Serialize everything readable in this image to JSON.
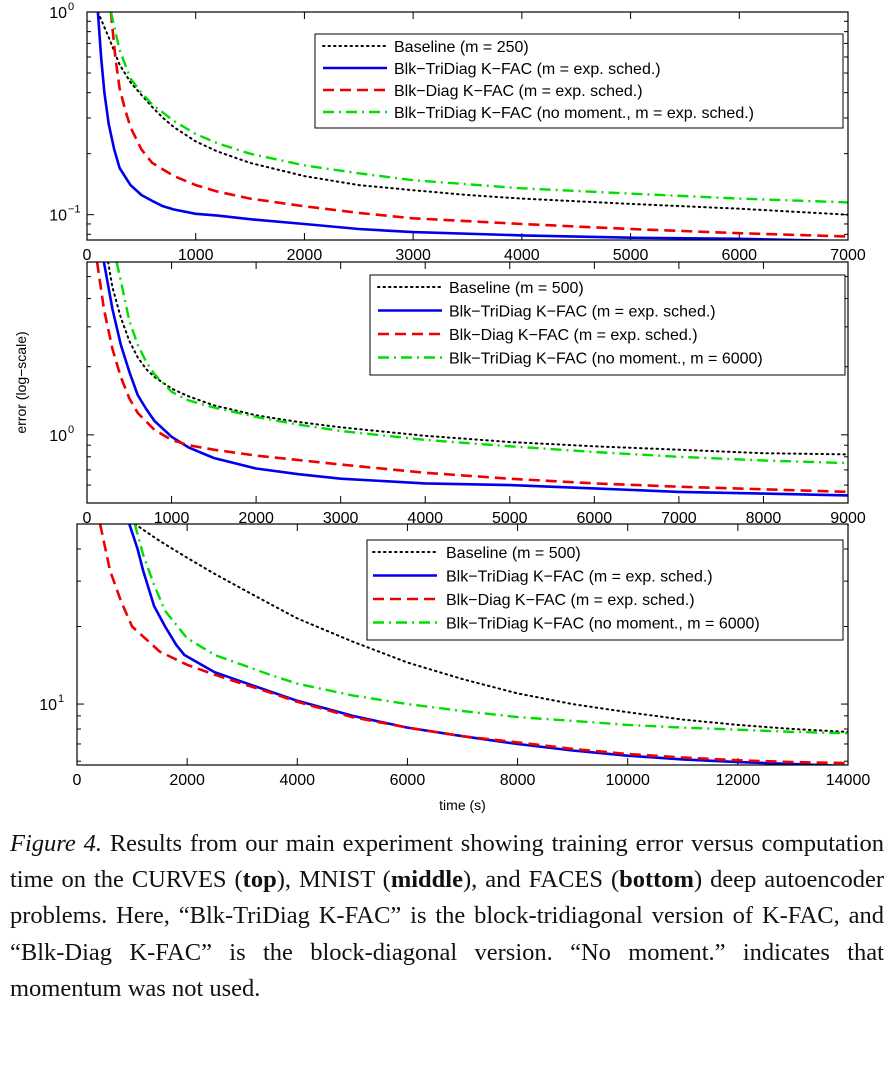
{
  "chart_data": [
    {
      "type": "line",
      "panel": "top",
      "yscale": "log",
      "xlim": [
        0,
        7000
      ],
      "ylim": [
        0.075,
        1.0
      ],
      "xticks": [
        "0",
        "1000",
        "2000",
        "3000",
        "4000",
        "5000",
        "6000",
        "7000"
      ],
      "yticks": [
        {
          "base": "10",
          "exp": "0"
        },
        {
          "base": "10",
          "exp": "−1"
        }
      ],
      "legend_position": "top-right",
      "series": [
        {
          "name": "Baseline (m = 250)",
          "color": "#000000",
          "style": "dotted",
          "x": [
            100,
            200,
            300,
            400,
            500,
            600,
            700,
            800,
            1000,
            1200,
            1500,
            2000,
            2500,
            3000,
            3500,
            4000,
            5000,
            6000,
            7000
          ],
          "y": [
            1.0,
            0.75,
            0.55,
            0.45,
            0.39,
            0.34,
            0.3,
            0.27,
            0.23,
            0.205,
            0.18,
            0.155,
            0.14,
            0.132,
            0.125,
            0.12,
            0.113,
            0.107,
            0.1
          ]
        },
        {
          "name": "Blk−TriDiag K−FAC (m = exp. sched.)",
          "color": "#0000ee",
          "style": "solid",
          "x": [
            100,
            130,
            160,
            200,
            250,
            300,
            400,
            500,
            600,
            700,
            800,
            1000,
            1200,
            1500,
            2000,
            2500,
            3000,
            4000,
            5000,
            6000,
            7000
          ],
          "y": [
            1.0,
            0.6,
            0.4,
            0.28,
            0.21,
            0.17,
            0.14,
            0.125,
            0.117,
            0.11,
            0.106,
            0.101,
            0.099,
            0.095,
            0.09,
            0.085,
            0.082,
            0.079,
            0.077,
            0.076,
            0.074
          ]
        },
        {
          "name": "Blk−Diag K−FAC (m = exp. sched.)",
          "color": "#ee0000",
          "style": "dashed",
          "x": [
            220,
            260,
            300,
            350,
            400,
            500,
            600,
            800,
            1000,
            1200,
            1500,
            2000,
            2500,
            3000,
            4000,
            5000,
            6000,
            7000
          ],
          "y": [
            1.0,
            0.6,
            0.42,
            0.33,
            0.27,
            0.21,
            0.18,
            0.155,
            0.14,
            0.13,
            0.12,
            0.11,
            0.102,
            0.096,
            0.09,
            0.085,
            0.081,
            0.078
          ]
        },
        {
          "name": "Blk−TriDiag K−FAC (no moment., m = exp. sched.)",
          "color": "#00dd00",
          "style": "dashdot",
          "x": [
            220,
            300,
            400,
            500,
            600,
            800,
            1000,
            1200,
            1500,
            2000,
            2500,
            3000,
            4000,
            5000,
            6000,
            7000
          ],
          "y": [
            1.0,
            0.65,
            0.47,
            0.4,
            0.35,
            0.29,
            0.25,
            0.225,
            0.2,
            0.175,
            0.16,
            0.148,
            0.135,
            0.127,
            0.12,
            0.115
          ]
        }
      ]
    },
    {
      "type": "line",
      "panel": "middle",
      "yscale": "log",
      "xlim": [
        0,
        9000
      ],
      "ylim": [
        0.5,
        5.8
      ],
      "xticks": [
        "0",
        "1000",
        "2000",
        "3000",
        "4000",
        "5000",
        "6000",
        "7000",
        "8000",
        "9000"
      ],
      "yticks": [
        {
          "base": "10",
          "exp": "0"
        }
      ],
      "ylabel": "error (log−scale)",
      "legend_position": "top-right",
      "series": [
        {
          "name": "Baseline (m = 500)",
          "color": "#000000",
          "style": "dotted",
          "x": [
            250,
            300,
            400,
            500,
            600,
            700,
            800,
            1000,
            1200,
            1500,
            2000,
            2500,
            3000,
            4000,
            5000,
            6000,
            7000,
            8000,
            9000
          ],
          "y": [
            5.8,
            4.5,
            3.3,
            2.6,
            2.2,
            1.95,
            1.8,
            1.6,
            1.48,
            1.35,
            1.22,
            1.14,
            1.08,
            0.99,
            0.93,
            0.89,
            0.86,
            0.83,
            0.82
          ]
        },
        {
          "name": "Blk−TriDiag K−FAC (m = exp. sched.)",
          "color": "#0000ee",
          "style": "solid",
          "x": [
            200,
            300,
            400,
            500,
            600,
            700,
            800,
            1000,
            1200,
            1500,
            2000,
            2500,
            3000,
            4000,
            5000,
            6000,
            7000,
            8000,
            9000
          ],
          "y": [
            5.8,
            3.6,
            2.5,
            1.9,
            1.5,
            1.3,
            1.15,
            0.98,
            0.88,
            0.79,
            0.71,
            0.67,
            0.64,
            0.61,
            0.6,
            0.58,
            0.56,
            0.55,
            0.54
          ]
        },
        {
          "name": "Blk−Diag K−FAC (m = exp. sched.)",
          "color": "#ee0000",
          "style": "dashed",
          "x": [
            120,
            200,
            300,
            400,
            500,
            600,
            800,
            1000,
            1200,
            1500,
            2000,
            3000,
            4000,
            5000,
            6000,
            7000,
            8000,
            9000
          ],
          "y": [
            5.8,
            3.6,
            2.4,
            1.8,
            1.45,
            1.25,
            1.05,
            0.95,
            0.9,
            0.86,
            0.81,
            0.74,
            0.68,
            0.64,
            0.61,
            0.59,
            0.575,
            0.56
          ]
        },
        {
          "name": "Blk−TriDiag K−FAC (no moment., m = 6000)",
          "color": "#00dd00",
          "style": "dashdot",
          "x": [
            350,
            400,
            500,
            600,
            700,
            800,
            1000,
            1200,
            1500,
            2000,
            2500,
            3000,
            4000,
            5000,
            6000,
            7000,
            8000,
            9000
          ],
          "y": [
            5.8,
            4.8,
            3.2,
            2.5,
            2.1,
            1.85,
            1.55,
            1.42,
            1.32,
            1.2,
            1.11,
            1.04,
            0.95,
            0.89,
            0.84,
            0.8,
            0.77,
            0.75
          ]
        }
      ]
    },
    {
      "type": "line",
      "panel": "bottom",
      "yscale": "log",
      "xlim": [
        0,
        14000
      ],
      "ylim": [
        5.8,
        50
      ],
      "xticks": [
        "0",
        "2000",
        "4000",
        "6000",
        "8000",
        "10000",
        "12000",
        "14000"
      ],
      "yticks": [
        {
          "base": "10",
          "exp": "1"
        }
      ],
      "xlabel": "time (s)",
      "legend_position": "top-right",
      "series": [
        {
          "name": "Baseline (m = 500)",
          "color": "#000000",
          "style": "dotted",
          "x": [
            1050,
            1500,
            2000,
            2500,
            3000,
            3500,
            4000,
            5000,
            6000,
            7000,
            8000,
            9000,
            10000,
            11000,
            12000,
            13000,
            14000
          ],
          "y": [
            50,
            43,
            37,
            32,
            28,
            24.5,
            21.5,
            17.5,
            14.5,
            12.5,
            11,
            10,
            9.3,
            8.7,
            8.3,
            8.0,
            7.8
          ]
        },
        {
          "name": "Blk−TriDiag K−FAC (m = exp. sched.)",
          "color": "#0000ee",
          "style": "solid",
          "x": [
            950,
            1100,
            1200,
            1400,
            1600,
            1800,
            1950,
            2500,
            3000,
            3500,
            4000,
            5000,
            6000,
            7000,
            8000,
            9000,
            10000,
            11000,
            12000,
            13000,
            14000
          ],
          "y": [
            50,
            40,
            33,
            24,
            20,
            17,
            15.5,
            13.3,
            12.2,
            11.2,
            10.3,
            9,
            8.1,
            7.5,
            7.0,
            6.6,
            6.3,
            6.1,
            5.95,
            5.85,
            5.75
          ]
        },
        {
          "name": "Blk−Diag K−FAC (m = exp. sched.)",
          "color": "#ee0000",
          "style": "dashed",
          "x": [
            420,
            600,
            800,
            1000,
            1500,
            2000,
            2500,
            3000,
            3500,
            4000,
            5000,
            6000,
            7000,
            8000,
            9000,
            10000,
            11000,
            12000,
            13000,
            14000
          ],
          "y": [
            50,
            33,
            25,
            20,
            16,
            14.2,
            13,
            12,
            11.1,
            10.2,
            8.9,
            8.1,
            7.5,
            7.1,
            6.7,
            6.4,
            6.2,
            6.05,
            5.95,
            5.9
          ]
        },
        {
          "name": "Blk−TriDiag K−FAC (no moment., m = 6000)",
          "color": "#00dd00",
          "style": "dashdot",
          "x": [
            1050,
            1200,
            1400,
            1600,
            2000,
            2500,
            3000,
            3500,
            4000,
            5000,
            6000,
            7000,
            8000,
            9000,
            10000,
            11000,
            12000,
            13000,
            14000
          ],
          "y": [
            50,
            38,
            29,
            23,
            18,
            15.5,
            14.2,
            13,
            12,
            10.8,
            10,
            9.4,
            8.9,
            8.6,
            8.3,
            8.1,
            7.95,
            7.8,
            7.7
          ]
        }
      ]
    }
  ],
  "caption": {
    "label": "Figure 4.",
    "t1": " Results from our main experiment showing training error versus computation time on the CURVES (",
    "b1": "top",
    "t2": "), MNIST (",
    "b2": "middle",
    "t3": "), and FACES (",
    "b3": "bottom",
    "t4": ") deep autoencoder problems. Here, “Blk-TriDiag K-FAC” is the block-tridiagonal version of K-FAC, and “Blk-Diag K-FAC” is the block-diagonal version. “No moment.” indicates that momentum was not used."
  }
}
